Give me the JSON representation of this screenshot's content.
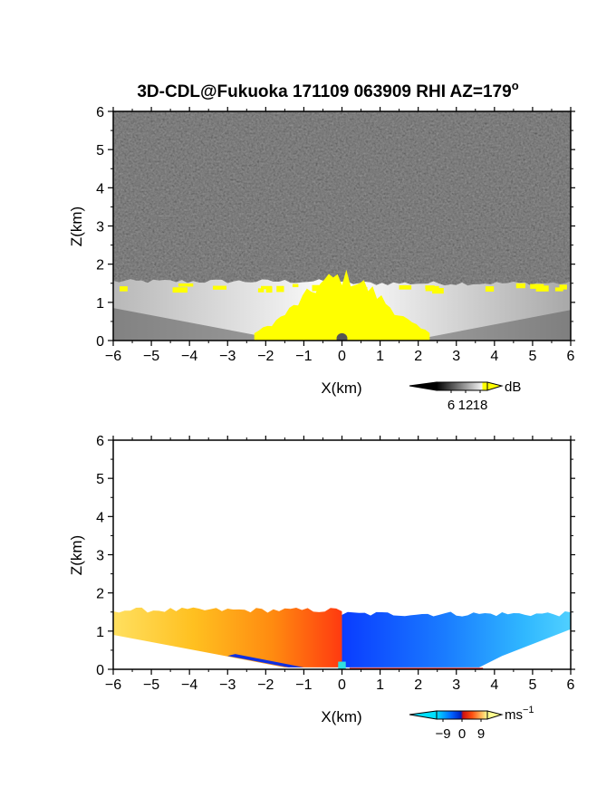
{
  "figure": {
    "title_main": "3D-CDL@Fukuoka 171109 063909 RHI AZ=179",
    "title_deg": "o"
  },
  "chart_data": [
    {
      "type": "heatmap",
      "quantity": "reflectivity",
      "xlabel": "X(km)",
      "ylabel": "Z(km)",
      "xlim": [
        -6,
        6
      ],
      "ylim": [
        0,
        6
      ],
      "x_ticks": [
        "-6",
        "-5",
        "-4",
        "-3",
        "-2",
        "-1",
        "0",
        "1",
        "2",
        "3",
        "4",
        "5",
        "6"
      ],
      "y_ticks": [
        "0",
        "1",
        "2",
        "3",
        "4",
        "5",
        "6"
      ],
      "colorbar": {
        "unit": "dB",
        "ticks": [
          6,
          12,
          18
        ],
        "labels": [
          "6",
          "12",
          "18"
        ],
        "range": [
          0,
          21
        ],
        "colors": [
          "#000000",
          "#ffffff",
          "#ffff00"
        ]
      },
      "background": "#2e2e2e",
      "saturated_color": "#ffff00",
      "echo_top_km": 1.55,
      "saturated_top_at_x0_km": 1.65
    },
    {
      "type": "heatmap",
      "quantity": "radial velocity",
      "xlabel": "X(km)",
      "ylabel": "Z(km)",
      "xlim": [
        -6,
        6
      ],
      "ylim": [
        0,
        6
      ],
      "x_ticks": [
        "-6",
        "-5",
        "-4",
        "-3",
        "-2",
        "-1",
        "0",
        "1",
        "2",
        "3",
        "4",
        "5",
        "6"
      ],
      "y_ticks": [
        "0",
        "1",
        "2",
        "3",
        "4",
        "5",
        "6"
      ],
      "colorbar": {
        "unit": "ms",
        "unit_exp": "−1",
        "ticks": [
          -9,
          0,
          9
        ],
        "labels": [
          "−9",
          "0",
          "9"
        ],
        "range": [
          -12,
          12
        ],
        "colors": [
          "#00e0ff",
          "#0030ff",
          "#ff1010",
          "#ffff80"
        ]
      },
      "echo_top_km": 1.55,
      "velocity_left_ms": 6,
      "velocity_right_ms": -6
    }
  ]
}
